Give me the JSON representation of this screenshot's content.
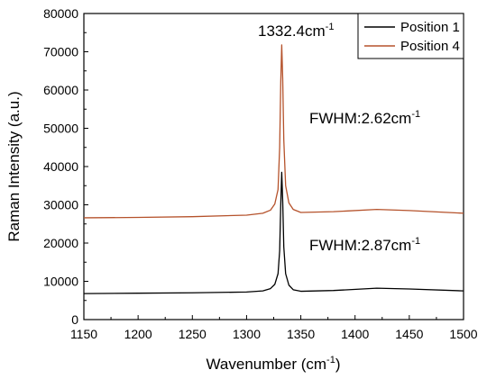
{
  "chart_data": {
    "type": "line",
    "title": "",
    "xlabel": "Wavenumber (cm",
    "xlabel_sup": "-1",
    "xlabel_suffix": ")",
    "ylabel": "Raman Intensity (a.u.)",
    "xlim": [
      1150,
      1500
    ],
    "ylim": [
      0,
      80000
    ],
    "x_ticks": [
      1150,
      1200,
      1250,
      1300,
      1350,
      1400,
      1450,
      1500
    ],
    "y_ticks": [
      0,
      10000,
      20000,
      30000,
      40000,
      50000,
      60000,
      70000,
      80000
    ],
    "grid": false,
    "legend_position": "top-right",
    "series": [
      {
        "name": "Position 1",
        "color": "#000000",
        "x": [
          1150,
          1200,
          1250,
          1300,
          1315,
          1322,
          1326,
          1329,
          1330.5,
          1331.5,
          1332.4,
          1333.3,
          1334.3,
          1336,
          1339,
          1343,
          1350,
          1380,
          1420,
          1450,
          1500
        ],
        "y": [
          6800,
          6900,
          7000,
          7200,
          7500,
          8100,
          9200,
          12000,
          18000,
          30000,
          38500,
          31000,
          19000,
          12000,
          9000,
          7800,
          7400,
          7600,
          8200,
          8000,
          7500
        ]
      },
      {
        "name": "Position 4",
        "color": "#b5522b",
        "x": [
          1150,
          1200,
          1250,
          1300,
          1315,
          1322,
          1326,
          1329,
          1330.5,
          1331.5,
          1332.4,
          1333.3,
          1334.3,
          1336,
          1339,
          1343,
          1350,
          1380,
          1420,
          1450,
          1500
        ],
        "y": [
          26600,
          26700,
          26900,
          27300,
          27800,
          28600,
          30200,
          34000,
          45000,
          62000,
          71800,
          63000,
          47000,
          35000,
          30500,
          28800,
          28000,
          28200,
          28800,
          28500,
          27800
        ]
      }
    ],
    "annotations": [
      {
        "text": "1332.4cm",
        "sup": "-1"
      },
      {
        "text": "FWHM:2.62cm",
        "sup": "-1"
      },
      {
        "text": "FWHM:2.87cm",
        "sup": "-1"
      }
    ]
  }
}
